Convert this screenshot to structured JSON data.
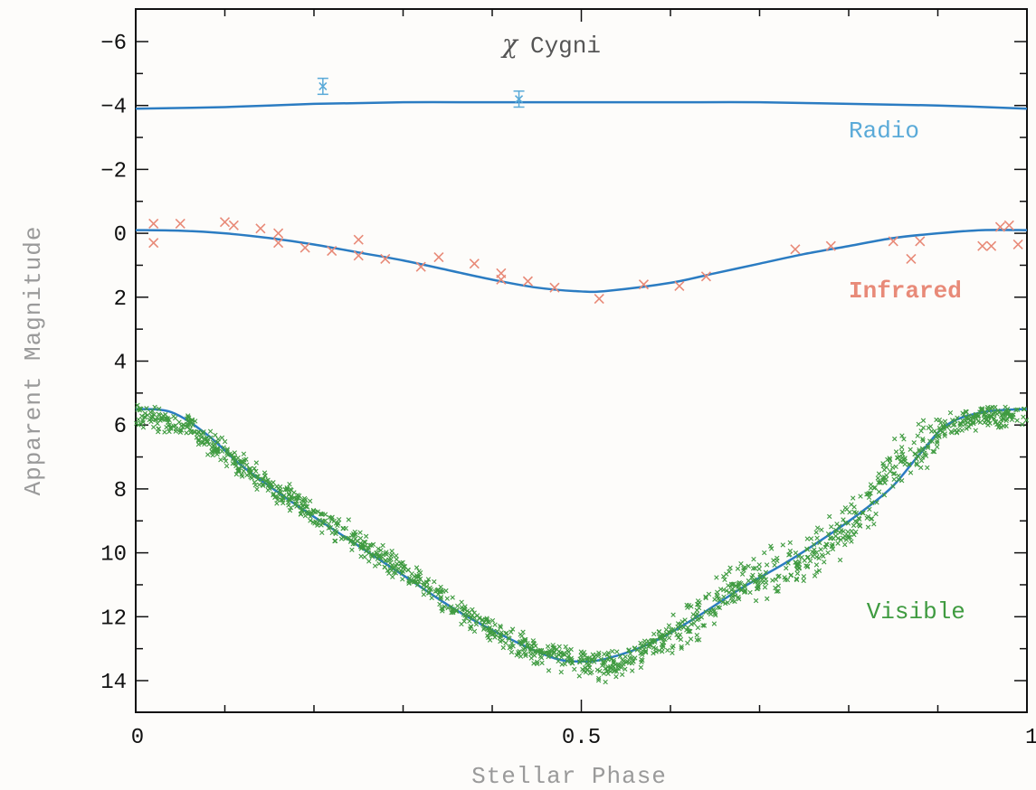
{
  "chart_data": {
    "type": "scatter",
    "title_symbol": "χ",
    "title_text": "Cygni",
    "xlabel": "Stellar Phase",
    "ylabel": "Apparent Magnitude",
    "xlim": [
      0,
      1
    ],
    "ylim": [
      -7,
      15
    ],
    "y_inverted": true,
    "grid": false,
    "x_ticks": [
      {
        "value": 0,
        "label": "0"
      },
      {
        "value": 0.5,
        "label": "0.5"
      },
      {
        "value": 1,
        "label": "1"
      }
    ],
    "y_ticks": [
      {
        "value": -6,
        "label": "−6"
      },
      {
        "value": -4,
        "label": "−4"
      },
      {
        "value": -2,
        "label": "−2"
      },
      {
        "value": 0,
        "label": "0"
      },
      {
        "value": 2,
        "label": "2"
      },
      {
        "value": 4,
        "label": "4"
      },
      {
        "value": 6,
        "label": "6"
      },
      {
        "value": 8,
        "label": "8"
      },
      {
        "value": 10,
        "label": "10"
      },
      {
        "value": 12,
        "label": "12"
      },
      {
        "value": 14,
        "label": "14"
      }
    ],
    "y_minor_step": 1,
    "x_minor_step": 0.1,
    "series": [
      {
        "name": "Radio",
        "color": "#5aaad8",
        "label_at": [
          0.8,
          -3.0
        ],
        "points": [
          [
            0.21,
            -4.6
          ],
          [
            0.43,
            -4.2
          ]
        ],
        "errors": [
          0.25,
          0.25
        ],
        "model": [
          [
            0,
            -3.9
          ],
          [
            0.1,
            -3.95
          ],
          [
            0.2,
            -4.05
          ],
          [
            0.3,
            -4.1
          ],
          [
            0.4,
            -4.1
          ],
          [
            0.5,
            -4.1
          ],
          [
            0.6,
            -4.1
          ],
          [
            0.7,
            -4.1
          ],
          [
            0.8,
            -4.05
          ],
          [
            0.9,
            -4.0
          ],
          [
            1.0,
            -3.9
          ]
        ]
      },
      {
        "name": "Infrared",
        "color": "#e88a78",
        "label_at": [
          0.8,
          2.0
        ],
        "points": [
          [
            0.02,
            0.3
          ],
          [
            0.02,
            -0.3
          ],
          [
            0.05,
            -0.3
          ],
          [
            0.1,
            -0.35
          ],
          [
            0.11,
            -0.25
          ],
          [
            0.14,
            -0.15
          ],
          [
            0.16,
            0.0
          ],
          [
            0.16,
            0.3
          ],
          [
            0.19,
            0.45
          ],
          [
            0.22,
            0.55
          ],
          [
            0.25,
            0.2
          ],
          [
            0.25,
            0.7
          ],
          [
            0.28,
            0.8
          ],
          [
            0.32,
            1.05
          ],
          [
            0.34,
            0.75
          ],
          [
            0.38,
            0.95
          ],
          [
            0.41,
            1.25
          ],
          [
            0.41,
            1.45
          ],
          [
            0.44,
            1.5
          ],
          [
            0.47,
            1.7
          ],
          [
            0.52,
            2.05
          ],
          [
            0.57,
            1.6
          ],
          [
            0.61,
            1.65
          ],
          [
            0.64,
            1.35
          ],
          [
            0.74,
            0.5
          ],
          [
            0.78,
            0.4
          ],
          [
            0.85,
            0.25
          ],
          [
            0.87,
            0.8
          ],
          [
            0.88,
            0.25
          ],
          [
            0.95,
            0.4
          ],
          [
            0.96,
            0.4
          ],
          [
            0.97,
            -0.2
          ],
          [
            0.98,
            -0.25
          ],
          [
            0.99,
            0.35
          ]
        ],
        "model": [
          [
            0,
            -0.1
          ],
          [
            0.05,
            -0.08
          ],
          [
            0.1,
            0.0
          ],
          [
            0.15,
            0.15
          ],
          [
            0.2,
            0.35
          ],
          [
            0.25,
            0.6
          ],
          [
            0.3,
            0.85
          ],
          [
            0.35,
            1.15
          ],
          [
            0.4,
            1.45
          ],
          [
            0.45,
            1.7
          ],
          [
            0.5,
            1.82
          ],
          [
            0.53,
            1.8
          ],
          [
            0.6,
            1.55
          ],
          [
            0.65,
            1.25
          ],
          [
            0.7,
            0.95
          ],
          [
            0.75,
            0.65
          ],
          [
            0.8,
            0.4
          ],
          [
            0.85,
            0.15
          ],
          [
            0.9,
            0.0
          ],
          [
            0.95,
            -0.1
          ],
          [
            1.0,
            -0.1
          ]
        ]
      },
      {
        "name": "Visible",
        "color": "#3f9b40",
        "label_at": [
          0.82,
          12.05
        ],
        "scatter_anchors": [
          [
            0,
            5.7
          ],
          [
            0.03,
            5.9
          ],
          [
            0.06,
            6.0
          ],
          [
            0.09,
            6.7
          ],
          [
            0.12,
            7.3
          ],
          [
            0.15,
            7.9
          ],
          [
            0.18,
            8.4
          ],
          [
            0.21,
            9.0
          ],
          [
            0.25,
            9.6
          ],
          [
            0.29,
            10.4
          ],
          [
            0.33,
            11.1
          ],
          [
            0.37,
            11.9
          ],
          [
            0.41,
            12.6
          ],
          [
            0.45,
            13.1
          ],
          [
            0.5,
            13.4
          ],
          [
            0.54,
            13.6
          ],
          [
            0.58,
            12.9
          ],
          [
            0.62,
            12.2
          ],
          [
            0.66,
            11.3
          ],
          [
            0.7,
            10.7
          ],
          [
            0.74,
            10.4
          ],
          [
            0.78,
            9.7
          ],
          [
            0.82,
            8.6
          ],
          [
            0.85,
            7.4
          ],
          [
            0.88,
            6.7
          ],
          [
            0.91,
            6.1
          ],
          [
            0.95,
            5.7
          ],
          [
            1.0,
            5.7
          ]
        ],
        "model": [
          [
            0,
            5.5
          ],
          [
            0.04,
            5.6
          ],
          [
            0.08,
            6.3
          ],
          [
            0.12,
            7.3
          ],
          [
            0.18,
            8.5
          ],
          [
            0.24,
            9.6
          ],
          [
            0.3,
            10.7
          ],
          [
            0.36,
            11.8
          ],
          [
            0.42,
            12.7
          ],
          [
            0.47,
            13.3
          ],
          [
            0.5,
            13.4
          ],
          [
            0.53,
            13.3
          ],
          [
            0.58,
            12.8
          ],
          [
            0.63,
            12.0
          ],
          [
            0.68,
            11.1
          ],
          [
            0.73,
            10.3
          ],
          [
            0.78,
            9.4
          ],
          [
            0.82,
            8.6
          ],
          [
            0.85,
            7.9
          ],
          [
            0.88,
            6.9
          ],
          [
            0.91,
            6.0
          ],
          [
            0.95,
            5.6
          ],
          [
            1.0,
            5.5
          ]
        ]
      }
    ]
  }
}
